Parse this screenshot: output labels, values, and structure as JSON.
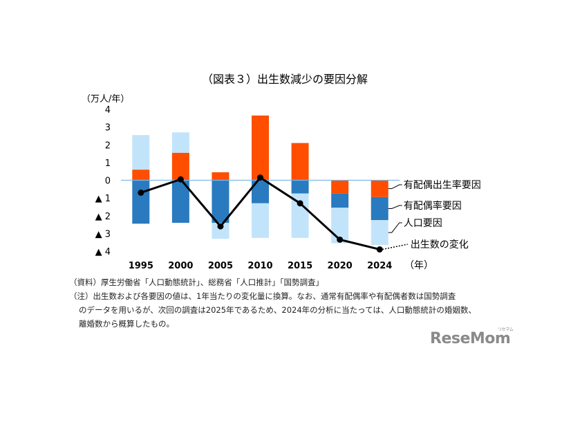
{
  "chart_data": {
    "type": "bar",
    "title": "（図表３）出生数減少の要因分解",
    "unit_label": "（万人/年）",
    "x_suffix": "（年）",
    "categories": [
      "1995",
      "2000",
      "2005",
      "2010",
      "2015",
      "2020",
      "2024"
    ],
    "y_tick_labels": [
      "4",
      "3",
      "2",
      "1",
      "0",
      "▲ 1",
      "▲ 2",
      "▲ 3",
      "▲ 4"
    ],
    "ylim": [
      -4,
      4
    ],
    "series": [
      {
        "name": "有配偶出生率要因",
        "color": "#ff4e00",
        "values": [
          0.6,
          1.55,
          0.45,
          3.65,
          2.1,
          -0.75,
          -0.95
        ]
      },
      {
        "name": "有配偶率要因",
        "color": "#2a7abf",
        "values": [
          -2.45,
          -2.4,
          -2.4,
          -1.3,
          -0.75,
          -0.8,
          -1.3
        ]
      },
      {
        "name": "人口要因",
        "color": "#c2e4fb",
        "values": [
          1.95,
          1.15,
          -0.9,
          -1.95,
          -2.5,
          -2.0,
          -1.4
        ]
      },
      {
        "name": "出生数の変化",
        "type": "line",
        "color": "#000000",
        "values": [
          -0.7,
          0.05,
          -2.6,
          0.15,
          -1.3,
          -3.35,
          -3.9
        ]
      }
    ],
    "zero_line_color": "#7fb8e6"
  },
  "notes": {
    "source": "（資料）厚生労働省「人口動態統計」、総務省「人口推計」「国勢調査」",
    "note_line1": "（注）出生数および各要因の値は、1年当たりの変化量に換算。なお、通常有配偶率や有配偶者数は国勢調査",
    "note_line2": "のデータを用いるが、次回の調査は2025年であるため、2024年の分析に当たっては、人口動態統計の婚姻数、",
    "note_line3": "離婚数から概算したもの。"
  },
  "logo": {
    "text": "ReseMom",
    "sub": "リセマム"
  }
}
